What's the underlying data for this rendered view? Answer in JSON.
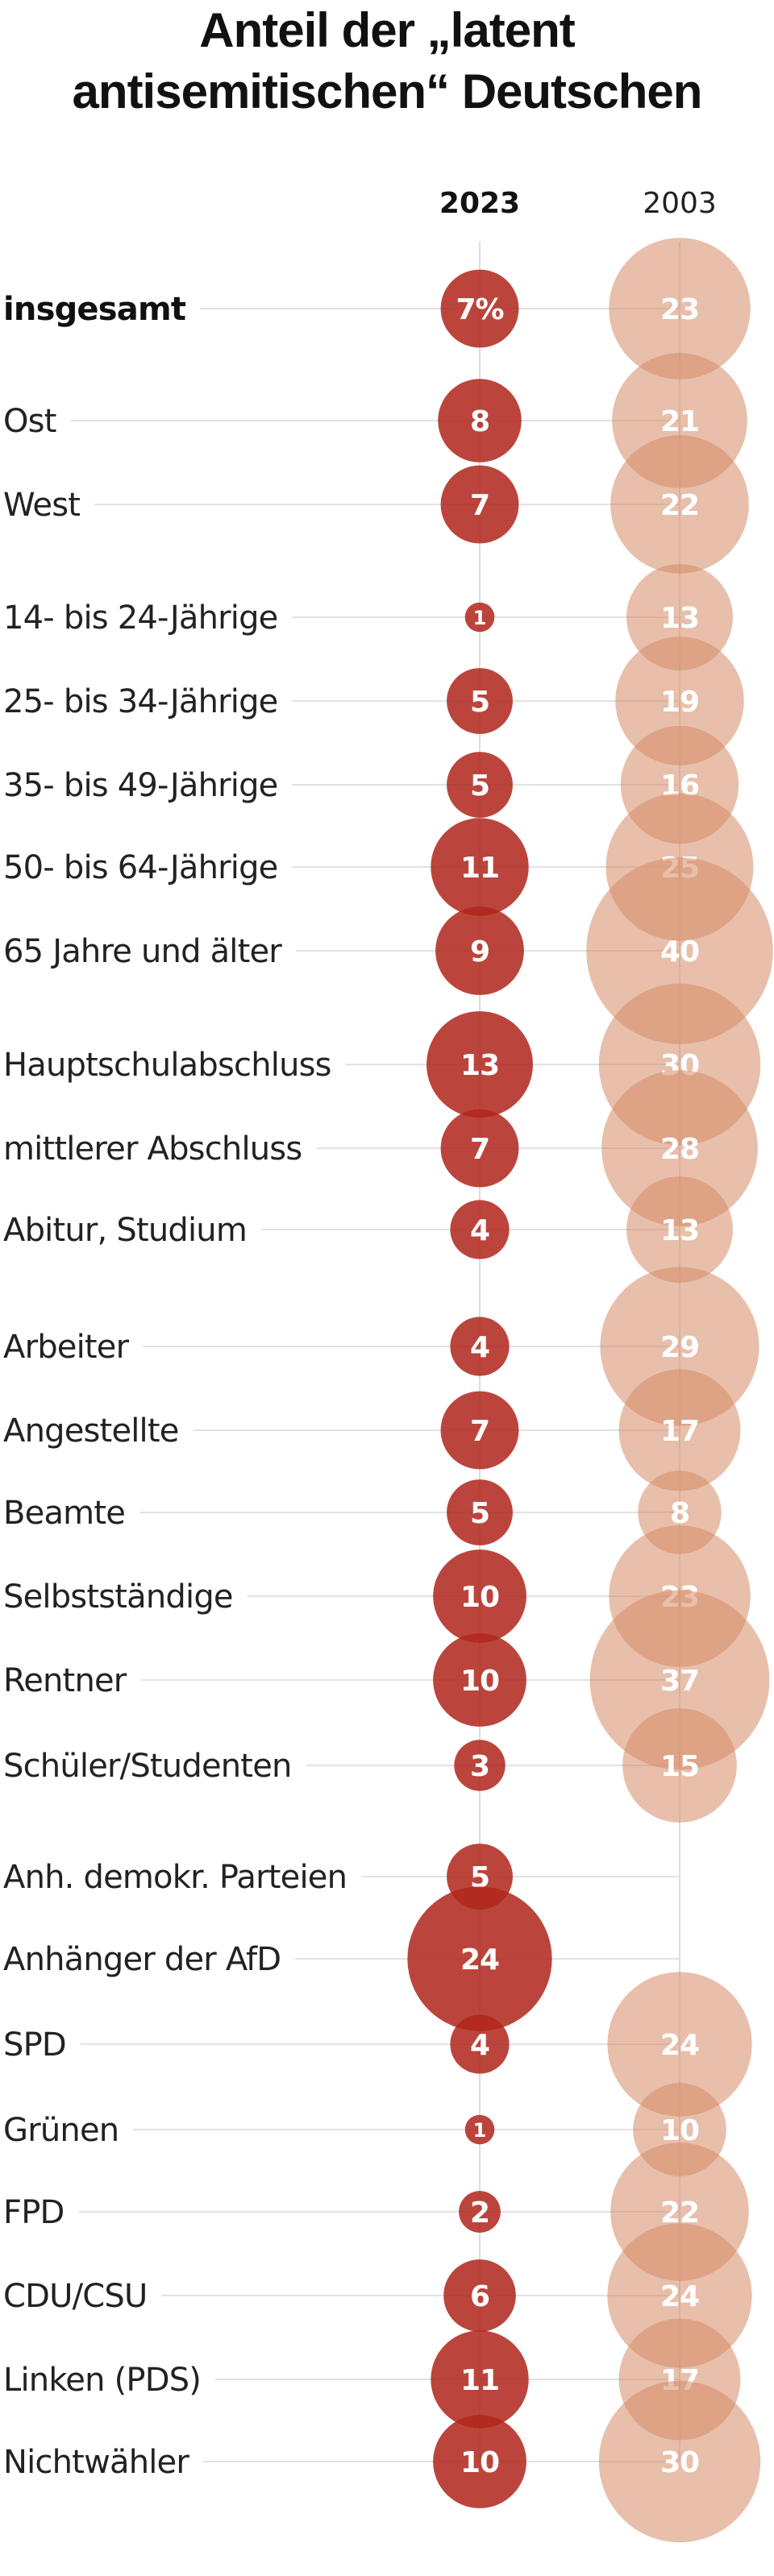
{
  "chart_data": {
    "type": "bubble",
    "title_lines": [
      "Anteil der „latent",
      "antisemitischen“ Deutschen"
    ],
    "unit": "%",
    "series": [
      {
        "name": "2023",
        "color": "#b3392c",
        "values": [
          7,
          8,
          7,
          1,
          5,
          5,
          11,
          9,
          13,
          7,
          4,
          4,
          7,
          5,
          10,
          10,
          3,
          5,
          24,
          4,
          1,
          2,
          6,
          11,
          10
        ]
      },
      {
        "name": "2003",
        "color": "#dc9a7a",
        "values": [
          23,
          21,
          22,
          13,
          19,
          16,
          25,
          40,
          30,
          28,
          13,
          29,
          17,
          8,
          23,
          37,
          15,
          null,
          null,
          24,
          10,
          22,
          24,
          17,
          30
        ]
      }
    ],
    "categories": [
      "insgesamt",
      "Ost",
      "West",
      "14- bis 24-Jährige",
      "25- bis 34-Jährige",
      "35- bis 49-Jährige",
      "50- bis 64-Jährige",
      "65 Jahre und älter",
      "Hauptschulabschluss",
      "mittlerer Abschluss",
      "Abitur, Studium",
      "Arbeiter",
      "Angestellte",
      "Beamte",
      "Selbstständige",
      "Rentner",
      "Schüler/Studenten",
      "Anh. demokr. Parteien",
      "Anhänger der AfD",
      "SPD",
      "Grünen",
      "FPD",
      "CDU/CSU",
      "Linken (PDS)",
      "Nichtwähler"
    ],
    "groups": [
      0,
      1,
      1,
      2,
      2,
      2,
      2,
      2,
      3,
      3,
      3,
      4,
      4,
      4,
      4,
      4,
      4,
      5,
      5,
      6,
      6,
      6,
      6,
      6,
      6
    ],
    "bubble_area_proportional_to_value": true
  }
}
